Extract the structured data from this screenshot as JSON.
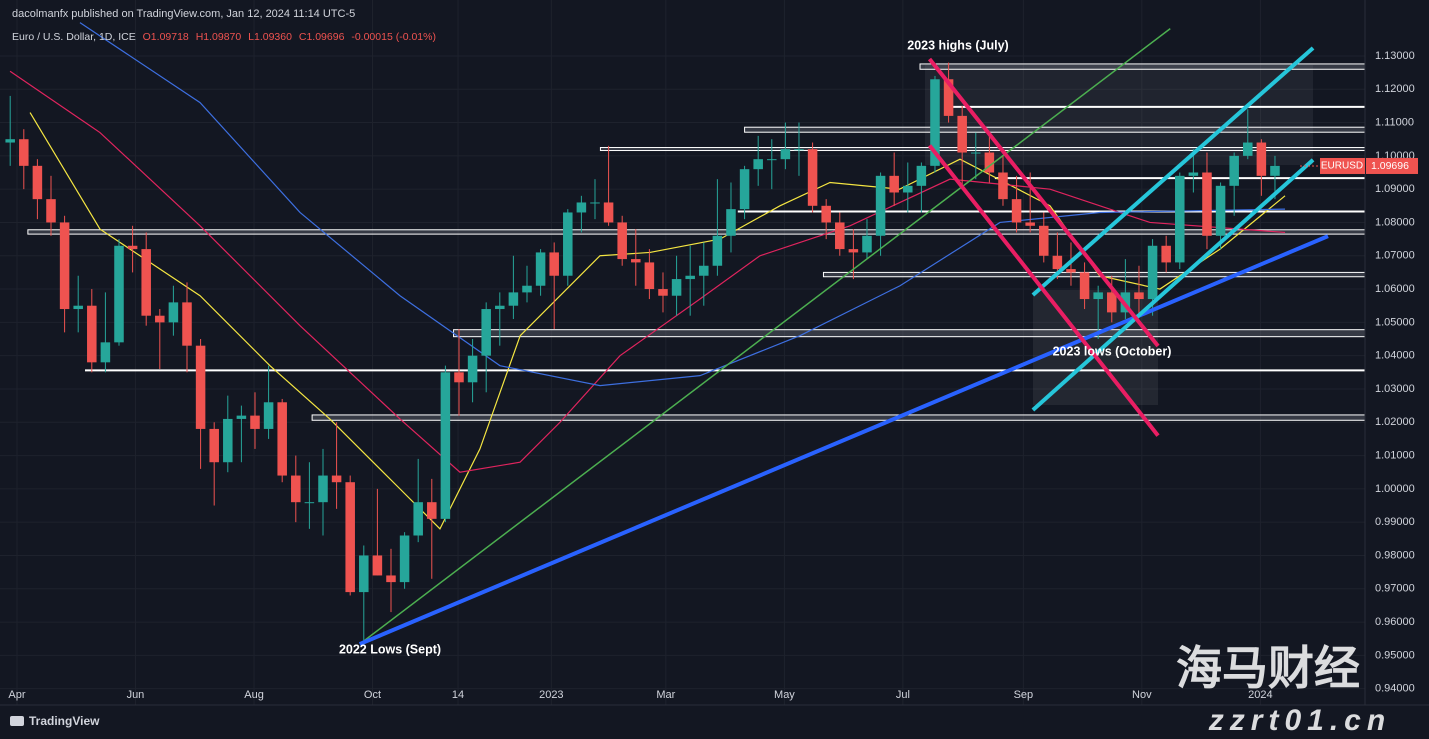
{
  "chart_data": {
    "type": "candlestick",
    "header": {
      "publisher": "dacolmanfx published on TradingView.com, Jan 12, 2024 11:14 UTC-5",
      "symbol": "Euro / U.S. Dollar, 1D, ICE",
      "open": "O1.09718",
      "high": "H1.09870",
      "low": "L1.09360",
      "close": "C1.09696",
      "change": "-0.00015 (-0.01%)"
    },
    "colors": {
      "up": "#26a69a",
      "down": "#ef5350"
    },
    "ohlc": [
      [
        1.104,
        1.118,
        1.097,
        1.105
      ],
      [
        1.105,
        1.108,
        1.09,
        1.097
      ],
      [
        1.097,
        1.099,
        1.081,
        1.087
      ],
      [
        1.087,
        1.094,
        1.076,
        1.08
      ],
      [
        1.08,
        1.082,
        1.047,
        1.054
      ],
      [
        1.054,
        1.064,
        1.047,
        1.055
      ],
      [
        1.055,
        1.06,
        1.035,
        1.038
      ],
      [
        1.038,
        1.059,
        1.035,
        1.044
      ],
      [
        1.044,
        1.075,
        1.043,
        1.073
      ],
      [
        1.073,
        1.079,
        1.065,
        1.072
      ],
      [
        1.072,
        1.077,
        1.049,
        1.052
      ],
      [
        1.052,
        1.054,
        1.036,
        1.05
      ],
      [
        1.05,
        1.061,
        1.046,
        1.056
      ],
      [
        1.056,
        1.062,
        1.035,
        1.043
      ],
      [
        1.043,
        1.045,
        1.006,
        1.018
      ],
      [
        1.018,
        1.02,
        0.995,
        1.008
      ],
      [
        1.008,
        1.028,
        1.005,
        1.021
      ],
      [
        1.021,
        1.025,
        1.008,
        1.022
      ],
      [
        1.022,
        1.029,
        1.012,
        1.018
      ],
      [
        1.018,
        1.037,
        1.015,
        1.026
      ],
      [
        1.026,
        1.027,
        1.002,
        1.004
      ],
      [
        1.004,
        1.01,
        0.99,
        0.996
      ],
      [
        0.996,
        1.008,
        0.988,
        0.996
      ],
      [
        0.996,
        1.012,
        0.986,
        1.004
      ],
      [
        1.004,
        1.02,
        0.994,
        1.002
      ],
      [
        1.002,
        1.004,
        0.968,
        0.969
      ],
      [
        0.969,
        0.983,
        0.954,
        0.98
      ],
      [
        0.98,
        1.0,
        0.974,
        0.974
      ],
      [
        0.974,
        0.982,
        0.963,
        0.972
      ],
      [
        0.972,
        0.987,
        0.97,
        0.986
      ],
      [
        0.986,
        1.009,
        0.984,
        0.996
      ],
      [
        0.996,
        1.003,
        0.973,
        0.991
      ],
      [
        0.991,
        1.037,
        0.99,
        1.035
      ],
      [
        1.035,
        1.048,
        1.022,
        1.032
      ],
      [
        1.032,
        1.045,
        1.026,
        1.04
      ],
      [
        1.04,
        1.056,
        1.029,
        1.054
      ],
      [
        1.054,
        1.059,
        1.043,
        1.055
      ],
      [
        1.055,
        1.07,
        1.051,
        1.059
      ],
      [
        1.059,
        1.067,
        1.056,
        1.061
      ],
      [
        1.061,
        1.072,
        1.058,
        1.071
      ],
      [
        1.071,
        1.074,
        1.048,
        1.064
      ],
      [
        1.064,
        1.084,
        1.061,
        1.083
      ],
      [
        1.083,
        1.088,
        1.077,
        1.086
      ],
      [
        1.086,
        1.093,
        1.081,
        1.086
      ],
      [
        1.086,
        1.103,
        1.079,
        1.08
      ],
      [
        1.08,
        1.082,
        1.067,
        1.069
      ],
      [
        1.069,
        1.078,
        1.061,
        1.068
      ],
      [
        1.068,
        1.072,
        1.057,
        1.06
      ],
      [
        1.06,
        1.065,
        1.053,
        1.058
      ],
      [
        1.058,
        1.07,
        1.052,
        1.063
      ],
      [
        1.063,
        1.073,
        1.052,
        1.064
      ],
      [
        1.064,
        1.074,
        1.055,
        1.067
      ],
      [
        1.067,
        1.093,
        1.064,
        1.076
      ],
      [
        1.076,
        1.092,
        1.071,
        1.084
      ],
      [
        1.084,
        1.097,
        1.081,
        1.096
      ],
      [
        1.096,
        1.106,
        1.091,
        1.099
      ],
      [
        1.099,
        1.105,
        1.09,
        1.099
      ],
      [
        1.099,
        1.11,
        1.096,
        1.102
      ],
      [
        1.102,
        1.11,
        1.094,
        1.102
      ],
      [
        1.102,
        1.104,
        1.083,
        1.085
      ],
      [
        1.085,
        1.087,
        1.075,
        1.08
      ],
      [
        1.08,
        1.083,
        1.07,
        1.072
      ],
      [
        1.072,
        1.078,
        1.063,
        1.071
      ],
      [
        1.071,
        1.081,
        1.069,
        1.076
      ],
      [
        1.076,
        1.095,
        1.07,
        1.094
      ],
      [
        1.094,
        1.101,
        1.085,
        1.089
      ],
      [
        1.089,
        1.098,
        1.083,
        1.091
      ],
      [
        1.091,
        1.098,
        1.083,
        1.097
      ],
      [
        1.097,
        1.124,
        1.095,
        1.123
      ],
      [
        1.123,
        1.128,
        1.11,
        1.112
      ],
      [
        1.112,
        1.115,
        1.091,
        1.101
      ],
      [
        1.101,
        1.107,
        1.093,
        1.101
      ],
      [
        1.101,
        1.106,
        1.092,
        1.095
      ],
      [
        1.095,
        1.1,
        1.085,
        1.087
      ],
      [
        1.087,
        1.094,
        1.077,
        1.08
      ],
      [
        1.08,
        1.095,
        1.077,
        1.079
      ],
      [
        1.079,
        1.083,
        1.068,
        1.07
      ],
      [
        1.07,
        1.077,
        1.063,
        1.066
      ],
      [
        1.066,
        1.074,
        1.061,
        1.065
      ],
      [
        1.065,
        1.068,
        1.054,
        1.057
      ],
      [
        1.057,
        1.061,
        1.045,
        1.059
      ],
      [
        1.059,
        1.064,
        1.05,
        1.053
      ],
      [
        1.053,
        1.069,
        1.051,
        1.059
      ],
      [
        1.059,
        1.067,
        1.052,
        1.057
      ],
      [
        1.057,
        1.075,
        1.052,
        1.073
      ],
      [
        1.073,
        1.076,
        1.065,
        1.068
      ],
      [
        1.068,
        1.095,
        1.066,
        1.094
      ],
      [
        1.094,
        1.102,
        1.089,
        1.095
      ],
      [
        1.095,
        1.101,
        1.072,
        1.076
      ],
      [
        1.076,
        1.092,
        1.072,
        1.091
      ],
      [
        1.091,
        1.101,
        1.082,
        1.1
      ],
      [
        1.1,
        1.114,
        1.099,
        1.104
      ],
      [
        1.104,
        1.105,
        1.088,
        1.094
      ],
      [
        1.094,
        1.1,
        1.087,
        1.097
      ]
    ],
    "xlim": [
      -1.25,
      99.12
    ],
    "xticks": [
      {
        "value": 0,
        "label": "Apr"
      },
      {
        "value": 8.71,
        "label": "Jun"
      },
      {
        "value": 17.43,
        "label": "Aug"
      },
      {
        "value": 26.14,
        "label": "Oct"
      },
      {
        "value": 32.43,
        "label": "14"
      },
      {
        "value": 39.29,
        "label": "2023"
      },
      {
        "value": 47.71,
        "label": "Mar"
      },
      {
        "value": 56.43,
        "label": "May"
      },
      {
        "value": 65.14,
        "label": "Jul"
      },
      {
        "value": 74,
        "label": "Sep"
      },
      {
        "value": 82.71,
        "label": "Nov"
      },
      {
        "value": 91.43,
        "label": "2024"
      }
    ],
    "ylim": [
      0.9351,
      1.1468
    ],
    "yticks": [
      {
        "value": 0.94,
        "label": "0.94000"
      },
      {
        "value": 0.95,
        "label": "0.95000"
      },
      {
        "value": 0.96,
        "label": "0.96000"
      },
      {
        "value": 0.97,
        "label": "0.97000"
      },
      {
        "value": 0.98,
        "label": "0.98000"
      },
      {
        "value": 0.99,
        "label": "0.99000"
      },
      {
        "value": 1.0,
        "label": "1.00000"
      },
      {
        "value": 1.01,
        "label": "1.01000"
      },
      {
        "value": 1.02,
        "label": "1.02000"
      },
      {
        "value": 1.03,
        "label": "1.03000"
      },
      {
        "value": 1.04,
        "label": "1.04000"
      },
      {
        "value": 1.05,
        "label": "1.05000"
      },
      {
        "value": 1.06,
        "label": "1.06000"
      },
      {
        "value": 1.07,
        "label": "1.07000"
      },
      {
        "value": 1.08,
        "label": "1.08000"
      },
      {
        "value": 1.09,
        "label": "1.09000"
      },
      {
        "value": 1.1,
        "label": "1.10000"
      },
      {
        "value": 1.11,
        "label": "1.11000"
      },
      {
        "value": 1.12,
        "label": "1.12000"
      },
      {
        "value": 1.13,
        "label": "1.13000"
      }
    ],
    "grid": true,
    "moving_averages": [
      {
        "color": "#f5e642",
        "x": [
          0.96,
          6.1,
          13.46,
          18.6,
          23.0,
          28.16,
          31.1,
          34.04,
          37.0,
          42.87,
          46.54,
          51.69,
          56.1,
          59.78,
          64.9,
          69.34,
          75.96,
          79.6,
          84.04,
          88.46,
          93.24
        ],
        "values": [
          1.113,
          1.078,
          1.058,
          1.037,
          1.021,
          1.0,
          0.988,
          1.012,
          1.046,
          1.07,
          1.071,
          1.075,
          1.085,
          1.092,
          1.09,
          1.099,
          1.085,
          1.064,
          1.06,
          1.072,
          1.088
        ]
      },
      {
        "color": "#e0245e",
        "x": [
          -0.51,
          6.1,
          13.46,
          20.81,
          28.16,
          32.57,
          36.99,
          39.93,
          44.34,
          50.22,
          54.63,
          61.25,
          68.6,
          75.96,
          83.31,
          93.24
        ],
        "values": [
          1.1254,
          1.107,
          1.079,
          1.049,
          1.021,
          1.005,
          1.008,
          1.02,
          1.04,
          1.057,
          1.07,
          1.079,
          1.093,
          1.09,
          1.08,
          1.077
        ]
      },
      {
        "color": "#3d6fe0",
        "x": [
          4.63,
          13.46,
          20.81,
          28.16,
          35.51,
          42.87,
          50.22,
          57.57,
          64.93,
          72.28,
          79.63,
          93.24
        ],
        "values": [
          1.14,
          1.116,
          1.083,
          1.058,
          1.037,
          1.031,
          1.034,
          1.046,
          1.061,
          1.08,
          1.083,
          1.084
        ]
      }
    ],
    "levels": [
      {
        "low": 1.126,
        "high": 1.1276,
        "start": 66.4
      },
      {
        "low": 1.1147,
        "high": 1.1147,
        "start": 68.5
      },
      {
        "low": 1.1071,
        "high": 1.1086,
        "start": 53.5
      },
      {
        "low": 1.1016,
        "high": 1.1025,
        "start": 42.9
      },
      {
        "low": 1.0933,
        "high": 1.0933,
        "start": 71.9
      },
      {
        "low": 1.0833,
        "high": 1.0833,
        "start": 53.0
      },
      {
        "low": 1.0765,
        "high": 1.0778,
        "start": 0.8
      },
      {
        "low": 1.0637,
        "high": 1.065,
        "start": 59.3
      },
      {
        "low": 1.0457,
        "high": 1.0478,
        "start": 32.1
      },
      {
        "low": 1.0356,
        "high": 1.0356,
        "start": 5.0
      },
      {
        "low": 1.0206,
        "high": 1.0222,
        "start": 21.7
      }
    ],
    "trendlines": [
      {
        "color": "#4caf50",
        "width": 1.5,
        "x": [
          25.2,
          84.8
        ],
        "y": [
          0.9534,
          1.1382
        ]
      },
      {
        "color": "#2962ff",
        "width": 4,
        "x": [
          25.2,
          96.4
        ],
        "y": [
          0.9534,
          1.0759
        ]
      },
      {
        "color": "#26c6da",
        "width": 4,
        "x": [
          74.7,
          95.3
        ],
        "y": [
          1.0582,
          1.1324
        ]
      },
      {
        "color": "#26c6da",
        "width": 4,
        "x": [
          74.7,
          95.3
        ],
        "y": [
          1.0237,
          1.0988
        ]
      },
      {
        "color": "#e91e63",
        "width": 4,
        "x": [
          67.1,
          83.9
        ],
        "y": [
          1.1291,
          1.0429
        ]
      },
      {
        "color": "#e91e63",
        "width": 4,
        "x": [
          67.1,
          83.9
        ],
        "y": [
          1.1031,
          1.016
        ]
      }
    ],
    "annotations": {
      "highs": "2023 highs (July)",
      "lows_2023": "2023 lows (October)",
      "lows_2022": "2022 Lows (Sept)"
    },
    "last_price": {
      "symbol": "EURUSD",
      "value": 1.09696,
      "label": "1.09696"
    },
    "branding": "TradingView",
    "watermark": {
      "name": "海马财经",
      "site": "zzrt01.cn"
    }
  }
}
